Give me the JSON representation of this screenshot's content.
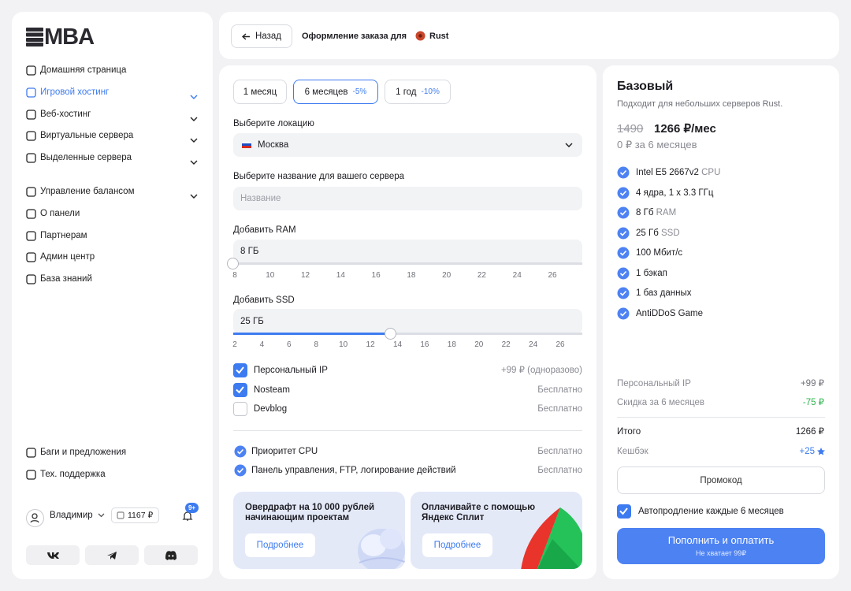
{
  "sidebar": {
    "logo": "MBA",
    "nav": [
      {
        "label": "Домашняя страница"
      },
      {
        "label": "Игровой хостинг",
        "active": true,
        "expandable": true
      },
      {
        "label": "Веб-хостинг",
        "expandable": true
      },
      {
        "label": "Виртуальные сервера",
        "expandable": true
      },
      {
        "label": "Выделенные сервера",
        "expandable": true
      }
    ],
    "nav2": [
      {
        "label": "Управление балансом",
        "expandable": true
      },
      {
        "label": "О панели"
      },
      {
        "label": "Партнерам"
      },
      {
        "label": "Админ центр"
      },
      {
        "label": "База знаний"
      }
    ],
    "footer_links": [
      "Баги и предложения",
      "Тех. поддержка"
    ],
    "user": {
      "name": "Владимир",
      "balance": "1167 ₽",
      "notifications": "9+"
    }
  },
  "header": {
    "back": "Назад",
    "title": "Оформление заказа для",
    "game": "Rust"
  },
  "config": {
    "periods": [
      {
        "label": "1 месяц"
      },
      {
        "label": "6 месяцев",
        "discount": "-5%",
        "selected": true
      },
      {
        "label": "1 год",
        "discount": "-10%"
      }
    ],
    "location_label": "Выберите локацию",
    "location": "Москва",
    "name_label": "Выберите название для вашего сервера",
    "name_placeholder": "Название",
    "ram": {
      "label": "Добавить RAM",
      "value": "8 ГБ",
      "ticks": [
        8,
        10,
        12,
        14,
        16,
        18,
        20,
        22,
        24,
        26
      ]
    },
    "ssd": {
      "label": "Добавить SSD",
      "value": "25 ГБ",
      "ticks": [
        2,
        4,
        6,
        8,
        10,
        12,
        14,
        16,
        18,
        20,
        22,
        24,
        26
      ]
    },
    "options": [
      {
        "label": "Персональный IP",
        "price": "+99 ₽ (одноразово)",
        "checked": true
      },
      {
        "label": "Nosteam",
        "price": "Бесплатно",
        "checked": true
      },
      {
        "label": "Devblog",
        "price": "Бесплатно",
        "checked": false
      }
    ],
    "included": [
      {
        "label": "Приоритет CPU",
        "price": "Бесплатно"
      },
      {
        "label": "Панель управления, FTP, логирование действий",
        "price": "Бесплатно"
      }
    ],
    "promos": [
      {
        "title": "Овердрафт на 10 000 рублей начинающим проектам",
        "button": "Подробнее"
      },
      {
        "title": "Оплачивайте с помощью Яндекс Сплит",
        "button": "Подробнее"
      }
    ]
  },
  "summary": {
    "plan": "Базовый",
    "subtitle": "Подходит для небольших серверов Rust.",
    "old_price": "1490",
    "price": "1266 ₽/мес",
    "period_total": "0 ₽ за 6 месяцев",
    "features": [
      {
        "text": "Intel E5 2667v2",
        "note": "CPU"
      },
      {
        "text": "4 ядра, 1 x 3.3 ГГц"
      },
      {
        "text": "8 Гб",
        "note": "RAM"
      },
      {
        "text": "25 Гб",
        "note": "SSD"
      },
      {
        "text": "100 Мбит/с"
      },
      {
        "text": "1 бэкап"
      },
      {
        "text": "1 баз данных"
      },
      {
        "text": "AntiDDoS Game"
      }
    ],
    "lines": [
      {
        "label": "Персональный IP",
        "value": "+99 ₽"
      },
      {
        "label": "Скидка за 6 месяцев",
        "value": "-75 ₽"
      }
    ],
    "total": {
      "label": "Итого",
      "value": "1266 ₽"
    },
    "cashback": {
      "label": "Кешбэк",
      "value": "+25"
    },
    "promo_button": "Промокод",
    "autorenew": {
      "label": "Автопродление каждые 6 месяцев",
      "checked": true
    },
    "pay_button": "Пополнить и оплатить",
    "pay_note": "Не хватает 99₽"
  }
}
